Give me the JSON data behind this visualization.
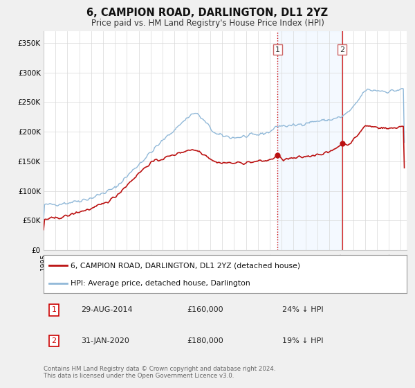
{
  "title": "6, CAMPION ROAD, DARLINGTON, DL1 2YZ",
  "subtitle": "Price paid vs. HM Land Registry's House Price Index (HPI)",
  "ylabel_ticks": [
    "£0",
    "£50K",
    "£100K",
    "£150K",
    "£200K",
    "£250K",
    "£300K",
    "£350K"
  ],
  "ytick_vals": [
    0,
    50000,
    100000,
    150000,
    200000,
    250000,
    300000,
    350000
  ],
  "ylim": [
    0,
    370000
  ],
  "xlim_start": 1995.0,
  "xlim_end": 2025.5,
  "background_color": "#f0f0f0",
  "plot_bg_color": "#ffffff",
  "hpi_line_color": "#90b8d8",
  "price_line_color": "#bb1111",
  "vline_color": "#cc0000",
  "shade_color": "#ddeeff",
  "sale1_date": 2014.66,
  "sale1_price": 160000,
  "sale1_label": "1",
  "sale1_date_str": "29-AUG-2014",
  "sale1_price_str": "£160,000",
  "sale1_hpi_str": "24% ↓ HPI",
  "sale2_date": 2020.08,
  "sale2_price": 180000,
  "sale2_label": "2",
  "sale2_date_str": "31-JAN-2020",
  "sale2_price_str": "£180,000",
  "sale2_hpi_str": "19% ↓ HPI",
  "legend_label1": "6, CAMPION ROAD, DARLINGTON, DL1 2YZ (detached house)",
  "legend_label2": "HPI: Average price, detached house, Darlington",
  "footer": "Contains HM Land Registry data © Crown copyright and database right 2024.\nThis data is licensed under the Open Government Licence v3.0."
}
